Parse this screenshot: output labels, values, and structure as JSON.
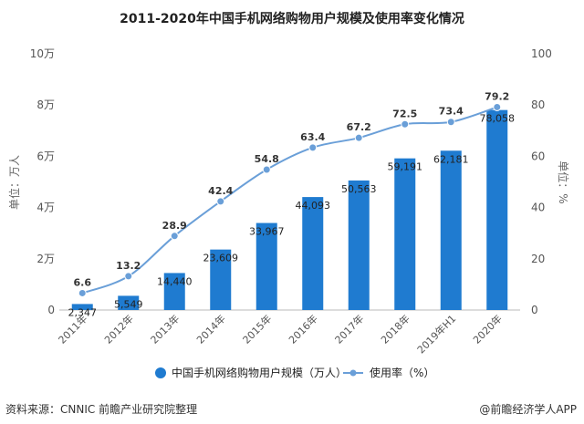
{
  "chart_data": {
    "type": "bar",
    "title": "2011-2020年中国手机网络购物用户规模及使用率变化情况",
    "categories": [
      "2011年",
      "2012年",
      "2013年",
      "2014年",
      "2015年",
      "2016年",
      "2017年",
      "2018年",
      "2019年H1",
      "2020年"
    ],
    "left_axis": {
      "label": "单位：万人",
      "range": [
        0,
        100000
      ],
      "ticks": [
        0,
        20000,
        40000,
        60000,
        80000,
        100000
      ],
      "tick_labels": [
        "0",
        "2万",
        "4万",
        "6万",
        "8万",
        "10万"
      ]
    },
    "right_axis": {
      "label": "单位：%",
      "range": [
        0,
        100
      ],
      "ticks": [
        0,
        20,
        40,
        60,
        80,
        100
      ],
      "tick_labels": [
        "0",
        "20",
        "40",
        "60",
        "80",
        "100"
      ]
    },
    "series": [
      {
        "name": "中国手机网络购物用户规模（万人）",
        "type": "bar",
        "axis": "left",
        "color": "#1f7bd0",
        "values": [
          2347,
          5549,
          14440,
          23609,
          33967,
          44093,
          50563,
          59191,
          62181,
          78058
        ],
        "value_labels": [
          "2,347",
          "5,549",
          "14,440",
          "23,609",
          "33,967",
          "44,093",
          "50,563",
          "59,191",
          "62,181",
          "78,058"
        ]
      },
      {
        "name": "使用率（%）",
        "type": "line",
        "axis": "right",
        "color": "#6a9fd8",
        "values": [
          6.6,
          13.2,
          28.9,
          42.4,
          54.8,
          63.4,
          67.2,
          72.5,
          73.4,
          79.2
        ],
        "value_labels": [
          "6.6",
          "13.2",
          "28.9",
          "42.4",
          "54.8",
          "63.4",
          "67.2",
          "72.5",
          "73.4",
          "79.2"
        ]
      }
    ],
    "legend": {
      "placement": "bottom"
    },
    "grid": false
  },
  "footer": {
    "source": "资料来源：CNNIC 前瞻产业研究院整理",
    "brand": "@前瞻经济学人APP"
  }
}
